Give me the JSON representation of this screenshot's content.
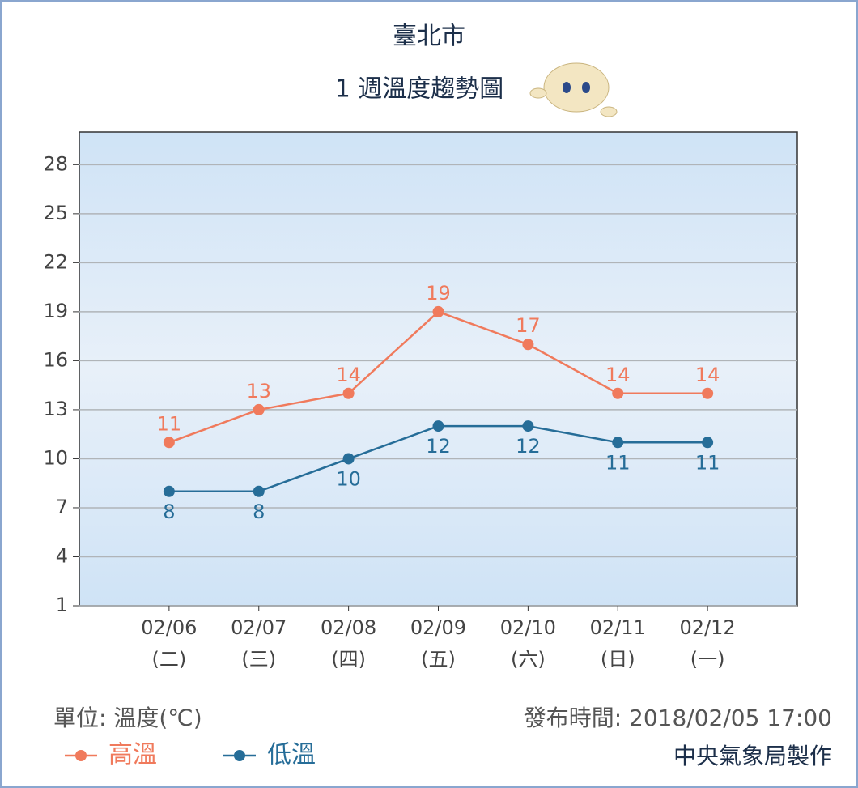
{
  "chart_data": {
    "type": "line",
    "title": "臺北市",
    "subtitle": "1 週溫度趨勢圖",
    "categories": [
      "02/06",
      "02/07",
      "02/08",
      "02/09",
      "02/10",
      "02/11",
      "02/12"
    ],
    "category_weekdays": [
      "(二)",
      "(三)",
      "(四)",
      "(五)",
      "(六)",
      "(日)",
      "(一)"
    ],
    "series": [
      {
        "name": "高溫",
        "color": "#f07a5c",
        "values": [
          11,
          13,
          14,
          19,
          17,
          14,
          14
        ]
      },
      {
        "name": "低溫",
        "color": "#266d98",
        "values": [
          8,
          8,
          10,
          12,
          12,
          11,
          11
        ]
      }
    ],
    "ylim": [
      1,
      30
    ],
    "yticks": [
      1,
      4,
      7,
      10,
      13,
      16,
      19,
      22,
      25,
      28
    ],
    "grid": true,
    "unit_label": "單位: 溫度(℃)",
    "issued": "發布時間: 2018/02/05 17:00",
    "credit": "中央氣象局製作"
  }
}
